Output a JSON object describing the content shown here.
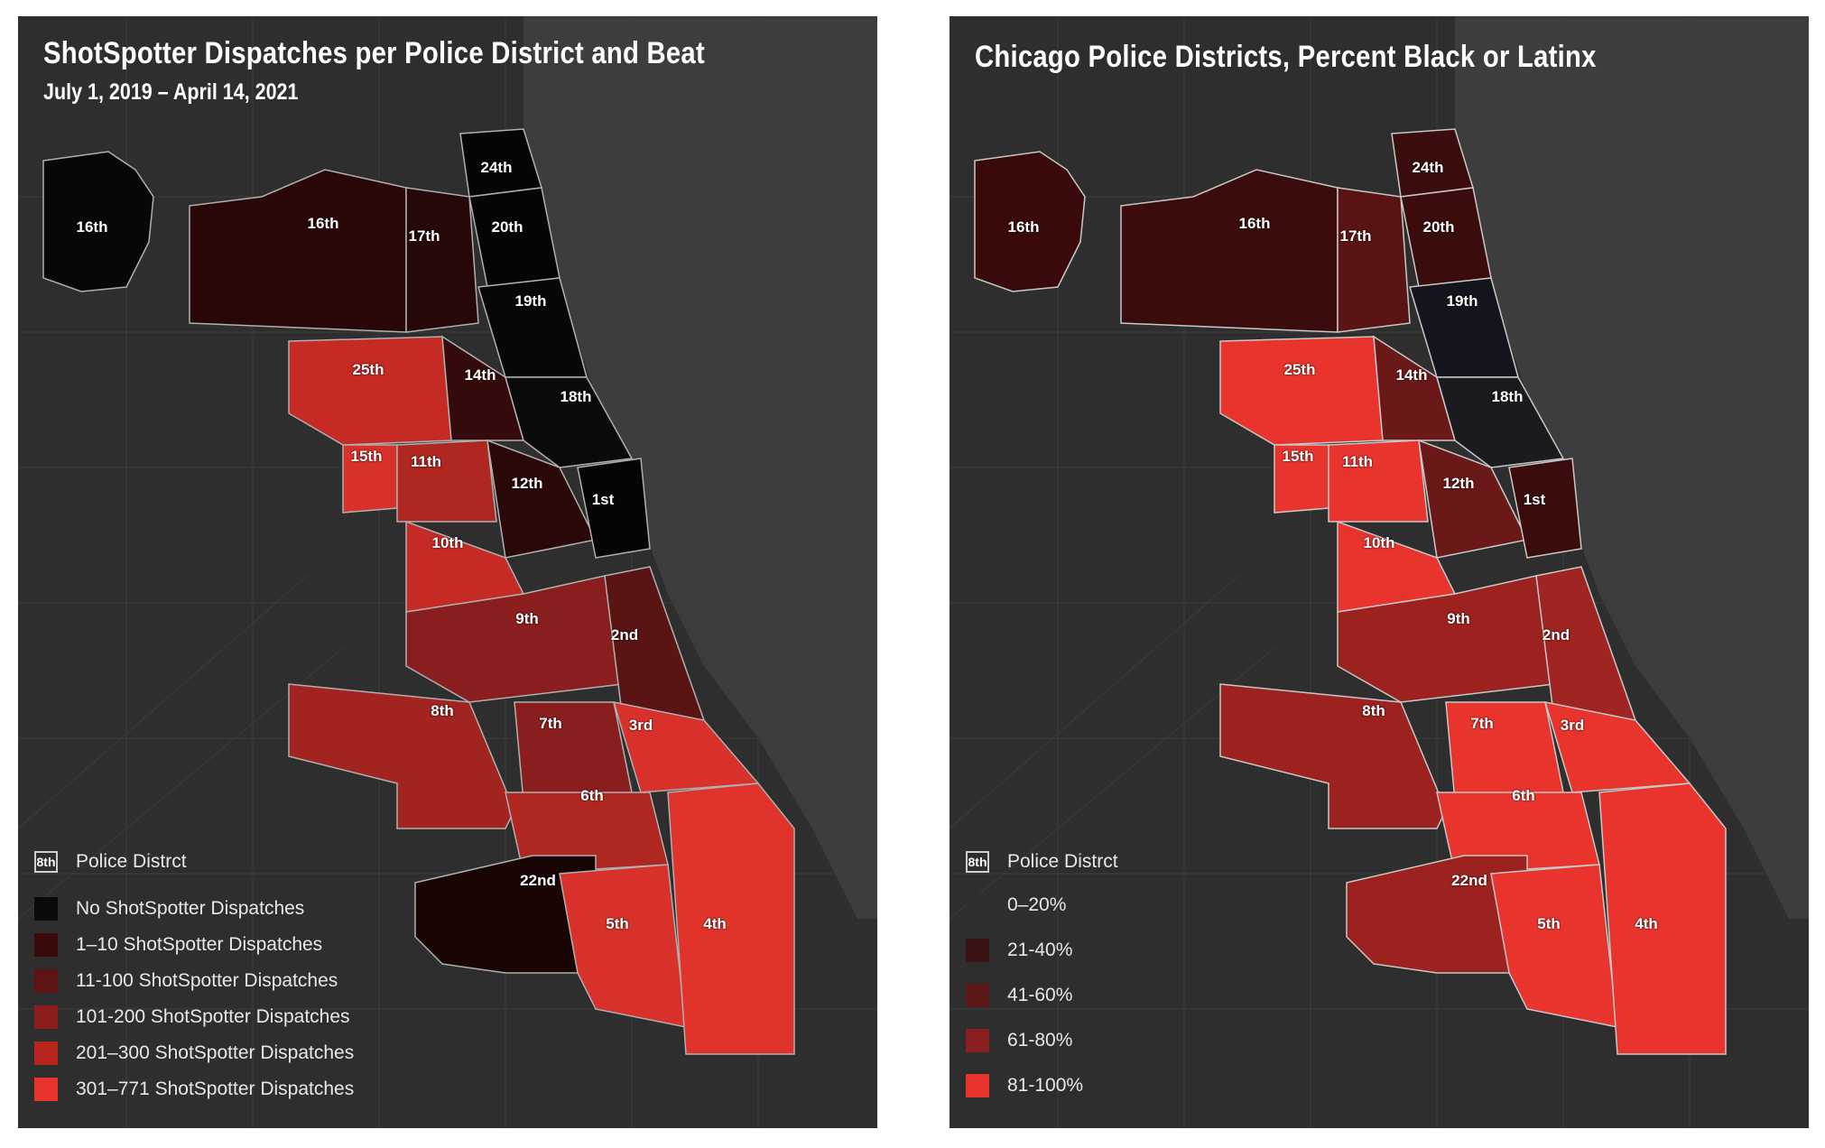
{
  "left_map": {
    "title": "ShotSpotter Dispatches per Police District and Beat",
    "subtitle": "July 1, 2019 – April 14, 2021",
    "district_labels": [
      "16th",
      "16th",
      "24th",
      "17th",
      "20th",
      "19th",
      "25th",
      "14th",
      "18th",
      "15th",
      "11th",
      "12th",
      "1st",
      "10th",
      "9th",
      "2nd",
      "8th",
      "7th",
      "3rd",
      "6th",
      "22nd",
      "5th",
      "4th"
    ],
    "legend": {
      "district_key_sample": "8th",
      "district_key_label": "Police Distrct",
      "classes": [
        {
          "label": "No ShotSpotter Dispatches",
          "color": "#0a0a0a"
        },
        {
          "label": "1–10 ShotSpotter Dispatches",
          "color": "#3a0a0a"
        },
        {
          "label": "11-100 ShotSpotter Dispatches",
          "color": "#5e1414"
        },
        {
          "label": "101-200 ShotSpotter Dispatches",
          "color": "#8e1d1d"
        },
        {
          "label": "201–300 ShotSpotter Dispatches",
          "color": "#b8251f"
        },
        {
          "label": "301–771 ShotSpotter Dispatches",
          "color": "#e8342c"
        }
      ]
    }
  },
  "right_map": {
    "title": "Chicago Police Districts, Percent Black or Latinx",
    "district_labels": [
      "16th",
      "16th",
      "24th",
      "17th",
      "20th",
      "19th",
      "25th",
      "14th",
      "18th",
      "15th",
      "11th",
      "12th",
      "1st",
      "10th",
      "9th",
      "2nd",
      "8th",
      "7th",
      "3rd",
      "6th",
      "22nd",
      "5th",
      "4th"
    ],
    "legend": {
      "district_key_sample": "8th",
      "district_key_label": "Police Distrct",
      "classes": [
        {
          "label": "0–20%",
          "color": "#2e2e2e"
        },
        {
          "label": "21-40%",
          "color": "#3a1414"
        },
        {
          "label": "41-60%",
          "color": "#5a1818"
        },
        {
          "label": "61-80%",
          "color": "#8a2020"
        },
        {
          "label": "81-100%",
          "color": "#e8342c"
        }
      ]
    }
  },
  "colors": {
    "background": "#2e2e2e",
    "land_dark": "#3a3a3a",
    "district_border": "#b0b0b0"
  }
}
